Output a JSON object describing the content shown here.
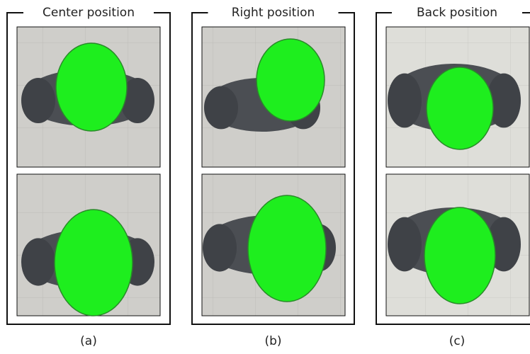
{
  "panels": [
    {
      "title": "Center position",
      "caption": "(a)"
    },
    {
      "title": "Right position",
      "caption": "(b)"
    },
    {
      "title": "Back position",
      "caption": "(c)"
    }
  ]
}
